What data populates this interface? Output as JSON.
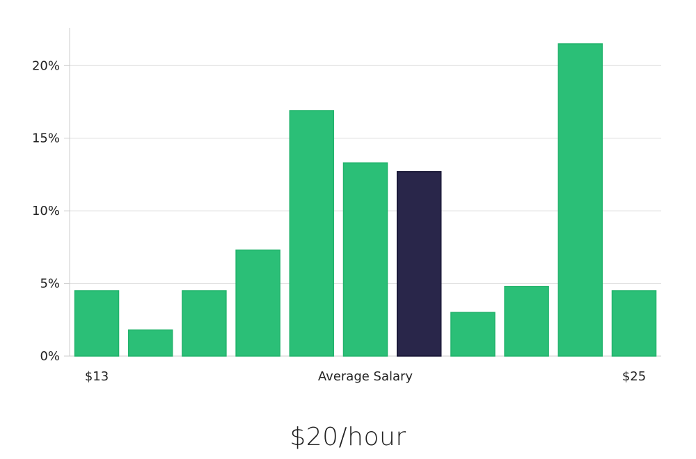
{
  "chart_data": {
    "type": "bar",
    "x_tick_labels": [
      "$13",
      "Average Salary",
      "$25"
    ],
    "y_ticks": [
      0,
      5,
      10,
      15,
      20
    ],
    "y_tick_labels": [
      "0%",
      "5%",
      "10%",
      "15%",
      "20%"
    ],
    "ylim": [
      0,
      22.6
    ],
    "values": [
      4.5,
      1.8,
      4.5,
      7.3,
      16.9,
      13.3,
      12.7,
      3.0,
      4.8,
      21.5,
      4.5
    ],
    "highlight_index": 6,
    "grid": true,
    "colors": {
      "bar": "#2bbf77",
      "bar_stroke": "#22b36c",
      "highlight": "#29264a",
      "highlight_stroke": "#161433",
      "grid": "#dddddd",
      "axis": "#cccccc"
    }
  },
  "salary_display": "$20/hour"
}
